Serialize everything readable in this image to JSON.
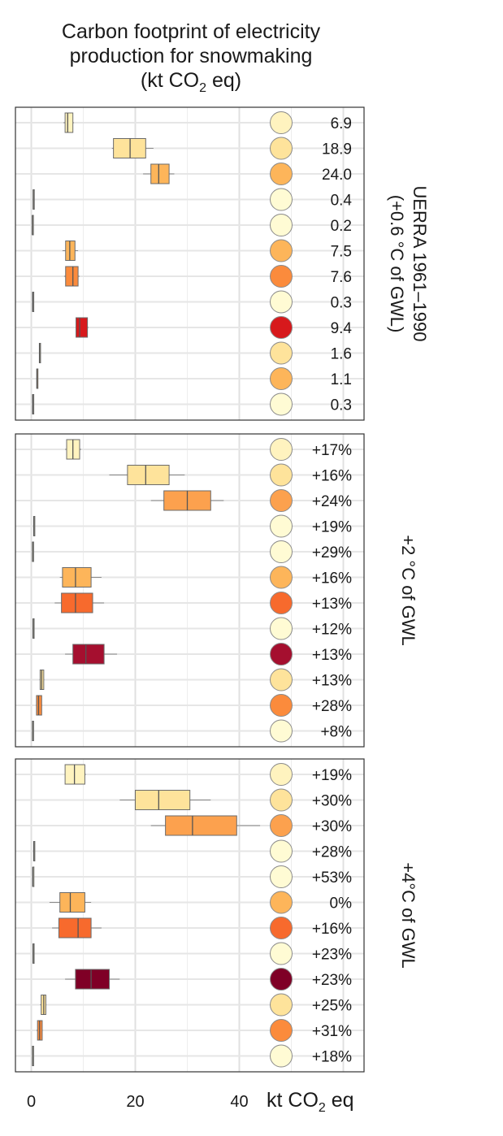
{
  "chart_data": {
    "type": "boxplot",
    "title_lines": [
      "Carbon footprint of electricity",
      "production for snowmaking",
      "(kt CO",
      "2",
      " eq)"
    ],
    "xlabel_main": "kt CO",
    "xlabel_sub": "2",
    "xlabel_tail": " eq",
    "xlim": [
      -3,
      60
    ],
    "xticks": [
      0,
      20,
      40
    ],
    "xtick_labels": [
      "0",
      "20",
      "40"
    ],
    "grid": true,
    "rows_per_panel": 12,
    "panels": [
      {
        "label": "UERRA 1961–1990 (+0.6 °C of GWL)",
        "label_lines": [
          "UERRA 1961–1990",
          "(+0.6 °C of GWL)"
        ],
        "values": [
          "6.9",
          "18.9",
          "24.0",
          "0.4",
          "0.2",
          "7.5",
          "7.6",
          "0.3",
          "9.4",
          "1.6",
          "1.1",
          "0.3"
        ],
        "circle_colors": [
          "#fff3bf",
          "#fee39b",
          "#fdb55a",
          "#fffbd4",
          "#fffbd4",
          "#fdb55a",
          "#fb8b3c",
          "#fffbd4",
          "#d7191c",
          "#fee39b",
          "#fdb55a",
          "#fffbd4"
        ],
        "boxes": [
          {
            "whislo": 6.2,
            "q1": 6.5,
            "med": 7.0,
            "q3": 8.0,
            "whishi": 8.2,
            "color": "#fff3bf"
          },
          {
            "whislo": 15.5,
            "q1": 15.8,
            "med": 19.0,
            "q3": 22.0,
            "whishi": 23.5,
            "color": "#fee39b"
          },
          {
            "whislo": 21.5,
            "q1": 23.0,
            "med": 24.5,
            "q3": 26.5,
            "whishi": 27.5,
            "color": "#fdb55a"
          },
          {
            "whislo": 0.3,
            "q1": 0.35,
            "med": 0.4,
            "q3": 0.45,
            "whishi": 0.5,
            "color": "#fffbd4"
          },
          {
            "whislo": 0.15,
            "q1": 0.18,
            "med": 0.2,
            "q3": 0.22,
            "whishi": 0.25,
            "color": "#fffbd4"
          },
          {
            "whislo": 6.0,
            "q1": 6.6,
            "med": 7.4,
            "q3": 8.4,
            "whishi": 9.0,
            "color": "#fdb55a"
          },
          {
            "whislo": 6.3,
            "q1": 6.6,
            "med": 8.0,
            "q3": 9.0,
            "whishi": 9.3,
            "color": "#fb8b3c"
          },
          {
            "whislo": 0.2,
            "q1": 0.25,
            "med": 0.3,
            "q3": 0.35,
            "whishi": 0.4,
            "color": "#fffbd4"
          },
          {
            "whislo": 8.5,
            "q1": 8.6,
            "med": 9.3,
            "q3": 10.8,
            "whishi": 11.0,
            "color": "#d7191c"
          },
          {
            "whislo": 1.5,
            "q1": 1.55,
            "med": 1.6,
            "q3": 1.65,
            "whishi": 1.7,
            "color": "#fee39b"
          },
          {
            "whislo": 1.0,
            "q1": 1.05,
            "med": 1.1,
            "q3": 1.15,
            "whishi": 1.2,
            "color": "#fdb55a"
          },
          {
            "whislo": 0.2,
            "q1": 0.25,
            "med": 0.3,
            "q3": 0.35,
            "whishi": 0.4,
            "color": "#fffbd4"
          }
        ]
      },
      {
        "label": "+2 °C of GWL",
        "label_lines": [
          "+2 °C of GWL"
        ],
        "values": [
          "+17%",
          "+16%",
          "+24%",
          "+19%",
          "+29%",
          "+16%",
          "+13%",
          "+12%",
          "+13%",
          "+13%",
          "+28%",
          "+8%"
        ],
        "circle_colors": [
          "#fff3bf",
          "#fee39b",
          "#fca14e",
          "#fffbd4",
          "#fffbd4",
          "#fdb55a",
          "#f76a2d",
          "#fffbd4",
          "#a50f2f",
          "#fee39b",
          "#fb8b3c",
          "#fffbd4"
        ],
        "boxes": [
          {
            "whislo": 6.5,
            "q1": 6.8,
            "med": 8.0,
            "q3": 9.3,
            "whishi": 9.6,
            "color": "#fff3bf"
          },
          {
            "whislo": 15.0,
            "q1": 18.5,
            "med": 22.0,
            "q3": 26.5,
            "whishi": 29.5,
            "color": "#fee39b"
          },
          {
            "whislo": 23.0,
            "q1": 25.5,
            "med": 30.0,
            "q3": 34.5,
            "whishi": 37.0,
            "color": "#fca14e"
          },
          {
            "whislo": 0.4,
            "q1": 0.45,
            "med": 0.5,
            "q3": 0.55,
            "whishi": 0.6,
            "color": "#fffbd4"
          },
          {
            "whislo": 0.2,
            "q1": 0.22,
            "med": 0.25,
            "q3": 0.28,
            "whishi": 0.3,
            "color": "#fffbd4"
          },
          {
            "whislo": 5.5,
            "q1": 6.0,
            "med": 8.5,
            "q3": 11.5,
            "whishi": 13.5,
            "color": "#fdb55a"
          },
          {
            "whislo": 4.5,
            "q1": 5.8,
            "med": 8.5,
            "q3": 11.8,
            "whishi": 14.0,
            "color": "#f76a2d"
          },
          {
            "whislo": 0.3,
            "q1": 0.32,
            "med": 0.35,
            "q3": 0.38,
            "whishi": 0.4,
            "color": "#fffbd4"
          },
          {
            "whislo": 6.5,
            "q1": 8.0,
            "med": 10.5,
            "q3": 14.0,
            "whishi": 16.5,
            "color": "#a50f2f"
          },
          {
            "whislo": 1.6,
            "q1": 1.7,
            "med": 2.0,
            "q3": 2.4,
            "whishi": 2.5,
            "color": "#fee39b"
          },
          {
            "whislo": 0.9,
            "q1": 1.0,
            "med": 1.4,
            "q3": 2.0,
            "whishi": 2.1,
            "color": "#fb8b3c"
          },
          {
            "whislo": 0.2,
            "q1": 0.22,
            "med": 0.25,
            "q3": 0.28,
            "whishi": 0.3,
            "color": "#fffbd4"
          }
        ]
      },
      {
        "label": "+4°C of GWL",
        "label_lines": [
          "+4°C of GWL"
        ],
        "values": [
          "+19%",
          "+30%",
          "+30%",
          "+28%",
          "+53%",
          "0%",
          "+16%",
          "+23%",
          "+23%",
          "+25%",
          "+31%",
          "+18%"
        ],
        "circle_colors": [
          "#fff3bf",
          "#fee39b",
          "#fca14e",
          "#fffbd4",
          "#fffbd4",
          "#fdb55a",
          "#f76a2d",
          "#fffbd4",
          "#7f0026",
          "#fee39b",
          "#fb8b3c",
          "#fffbd4"
        ],
        "boxes": [
          {
            "whislo": 6.5,
            "q1": 6.5,
            "med": 8.3,
            "q3": 10.3,
            "whishi": 10.5,
            "color": "#fff3bf"
          },
          {
            "whislo": 17.0,
            "q1": 20.0,
            "med": 24.5,
            "q3": 30.5,
            "whishi": 34.5,
            "color": "#fee39b"
          },
          {
            "whislo": 23.0,
            "q1": 25.8,
            "med": 31.0,
            "q3": 39.5,
            "whishi": 44.0,
            "color": "#fca14e"
          },
          {
            "whislo": 0.4,
            "q1": 0.45,
            "med": 0.5,
            "q3": 0.55,
            "whishi": 0.6,
            "color": "#fffbd4"
          },
          {
            "whislo": 0.25,
            "q1": 0.28,
            "med": 0.3,
            "q3": 0.32,
            "whishi": 0.35,
            "color": "#fffbd4"
          },
          {
            "whislo": 3.5,
            "q1": 5.5,
            "med": 7.5,
            "q3": 10.3,
            "whishi": 11.5,
            "color": "#fdb55a"
          },
          {
            "whislo": 4.0,
            "q1": 5.3,
            "med": 9.0,
            "q3": 11.5,
            "whishi": 13.5,
            "color": "#f76a2d"
          },
          {
            "whislo": 0.3,
            "q1": 0.32,
            "med": 0.35,
            "q3": 0.38,
            "whishi": 0.4,
            "color": "#fffbd4"
          },
          {
            "whislo": 6.5,
            "q1": 8.5,
            "med": 11.5,
            "q3": 15.0,
            "whishi": 17.0,
            "color": "#7f0026"
          },
          {
            "whislo": 1.7,
            "q1": 1.9,
            "med": 2.4,
            "q3": 2.8,
            "whishi": 2.9,
            "color": "#fee39b"
          },
          {
            "whislo": 1.0,
            "q1": 1.2,
            "med": 1.6,
            "q3": 2.1,
            "whishi": 2.2,
            "color": "#fb8b3c"
          },
          {
            "whislo": 0.2,
            "q1": 0.22,
            "med": 0.25,
            "q3": 0.28,
            "whishi": 0.3,
            "color": "#fffbd4"
          }
        ]
      }
    ]
  }
}
